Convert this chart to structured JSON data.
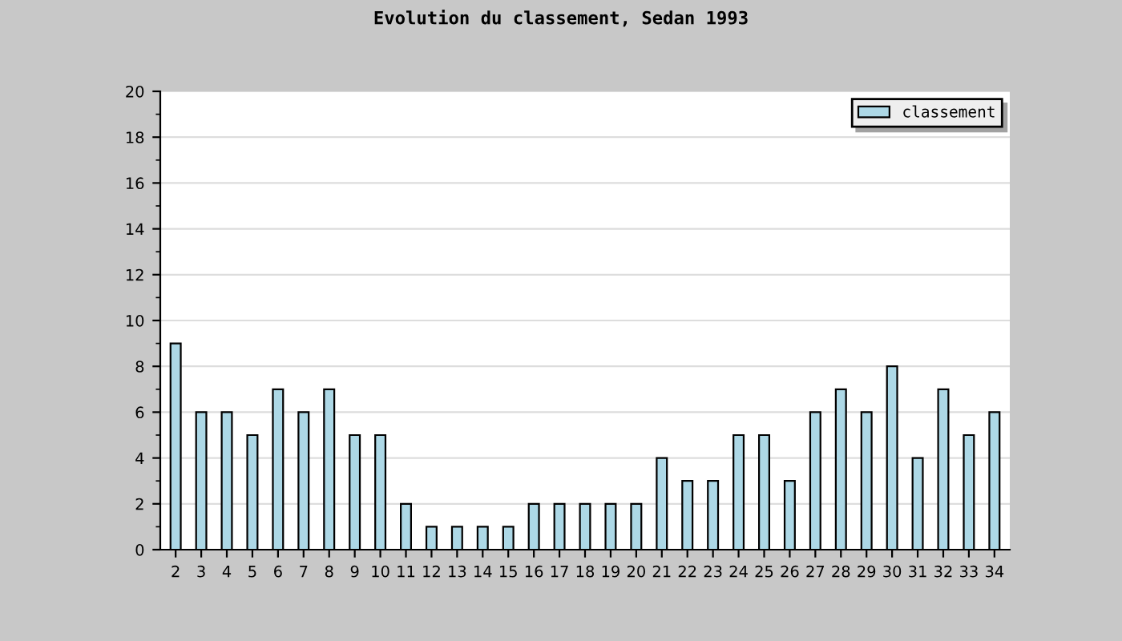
{
  "chart_data": {
    "type": "bar",
    "title": "Evolution du classement, Sedan 1993",
    "categories": [
      "2",
      "3",
      "4",
      "5",
      "6",
      "7",
      "8",
      "9",
      "10",
      "11",
      "12",
      "13",
      "14",
      "15",
      "16",
      "17",
      "18",
      "19",
      "20",
      "21",
      "22",
      "23",
      "24",
      "25",
      "26",
      "27",
      "28",
      "29",
      "30",
      "31",
      "32",
      "33",
      "34"
    ],
    "series": [
      {
        "name": "classement",
        "color": "#add8e6",
        "values": [
          9,
          6,
          6,
          5,
          7,
          6,
          7,
          5,
          5,
          2,
          1,
          1,
          1,
          1,
          2,
          2,
          2,
          2,
          2,
          4,
          3,
          3,
          5,
          5,
          3,
          6,
          7,
          6,
          8,
          4,
          7,
          5,
          6
        ]
      }
    ],
    "ylim": [
      0,
      20
    ],
    "yticks": [
      0,
      2,
      4,
      6,
      8,
      10,
      12,
      14,
      16,
      18,
      20
    ],
    "grid": "y",
    "legend": "top right"
  }
}
